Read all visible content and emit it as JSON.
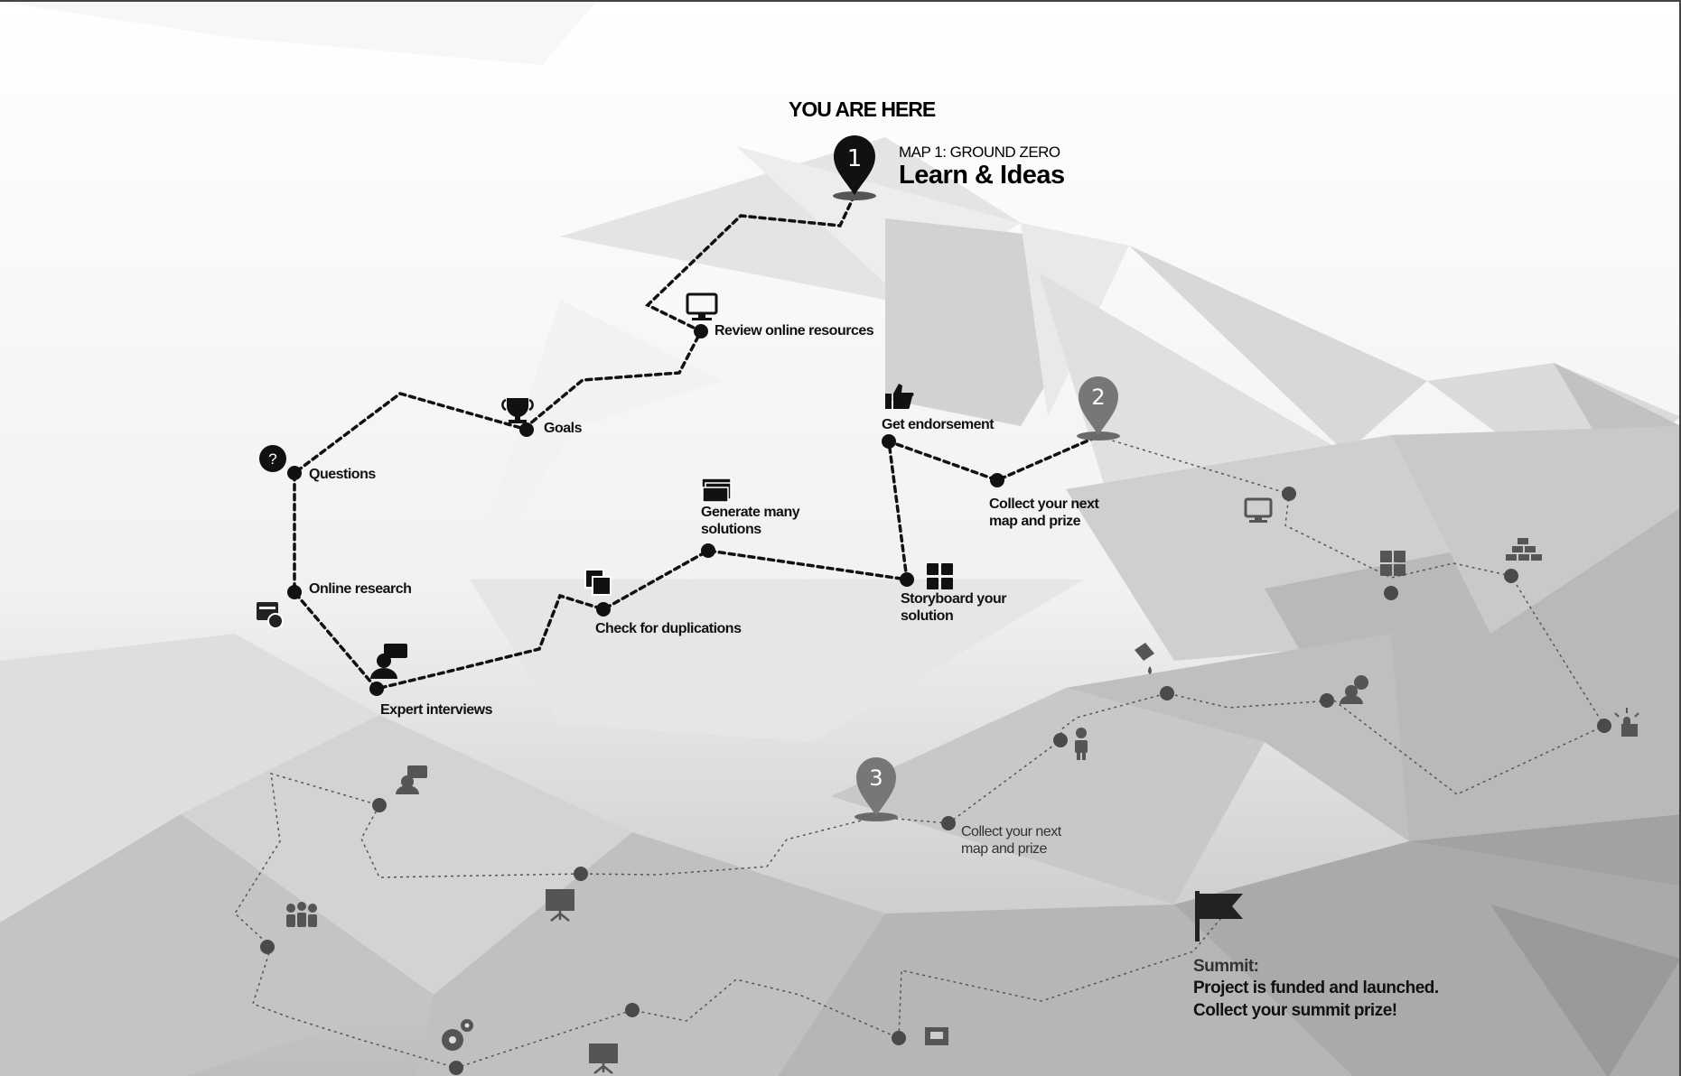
{
  "header": {
    "you_are_here": "YOU ARE HERE",
    "map_subtitle": "MAP 1: GROUND ZERO",
    "map_title": "Learn & Ideas"
  },
  "pins": [
    "1",
    "2",
    "3"
  ],
  "steps": {
    "review": "Review online resources",
    "goals": "Goals",
    "questions": "Questions",
    "online_research": "Online research",
    "expert_interviews": "Expert interviews",
    "check_duplications": "Check for duplications",
    "generate_solutions": "Generate many\nsolutions",
    "storyboard": "Storyboard your\nsolution",
    "get_endorsement": "Get endorsement",
    "collect_next_1": "Collect your next\nmap and prize",
    "collect_next_2": "Collect your next\nmap and prize"
  },
  "summit": {
    "line1": "Summit:",
    "line2": "Project is funded and launched.",
    "line3": "Collect your summit prize!"
  },
  "icons": [
    "monitor-icon",
    "trophy-icon",
    "question-icon",
    "checklist-icon",
    "expert-chat-icon",
    "copy-icon",
    "stacked-cards-icon",
    "grid-icon",
    "thumbs-up-icon",
    "flag-icon",
    "gears-icon",
    "presentation-icon",
    "team-icon",
    "bricks-icon",
    "paint-bucket-icon",
    "touch-icon",
    "person-icon"
  ],
  "colors": {
    "path_active": "#111111",
    "path_inactive": "#555555",
    "pin_active": "#111111",
    "pin_inactive": "#777777"
  }
}
